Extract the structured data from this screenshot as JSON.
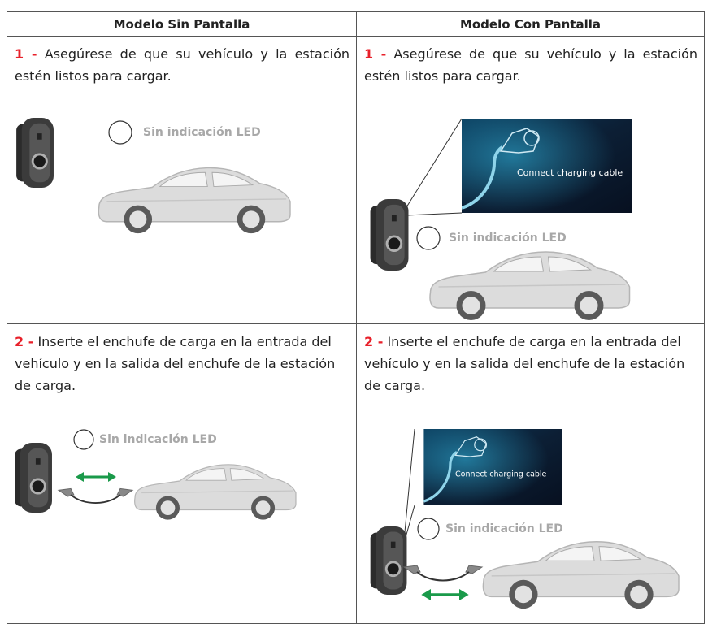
{
  "table": {
    "headers": [
      "Modelo Sin Pantalla",
      "Modelo Con Pantalla"
    ],
    "rows": [
      [
        {
          "step": "1 -",
          "text": "Asegúrese de que su vehículo y la estación estén listos para cargar.",
          "led": "Sin indicación LED"
        },
        {
          "step": "1 -",
          "text": "Asegúrese de que su vehículo y la estación estén listos para cargar.",
          "led": "Sin indicación LED",
          "screen": "Connect charging cable"
        }
      ],
      [
        {
          "step": "2 -",
          "text": "Inserte el enchufe de carga en la entrada del vehículo y en la salida del enchufe de la estación de carga.",
          "led": "Sin indicación LED"
        },
        {
          "step": "2 -",
          "text": "Inserte el enchufe de carga en la entrada del vehículo y en la salida del enchufe de la estación de carga.",
          "led": "Sin indicación LED",
          "screen": "Connect charging cable"
        }
      ]
    ]
  }
}
